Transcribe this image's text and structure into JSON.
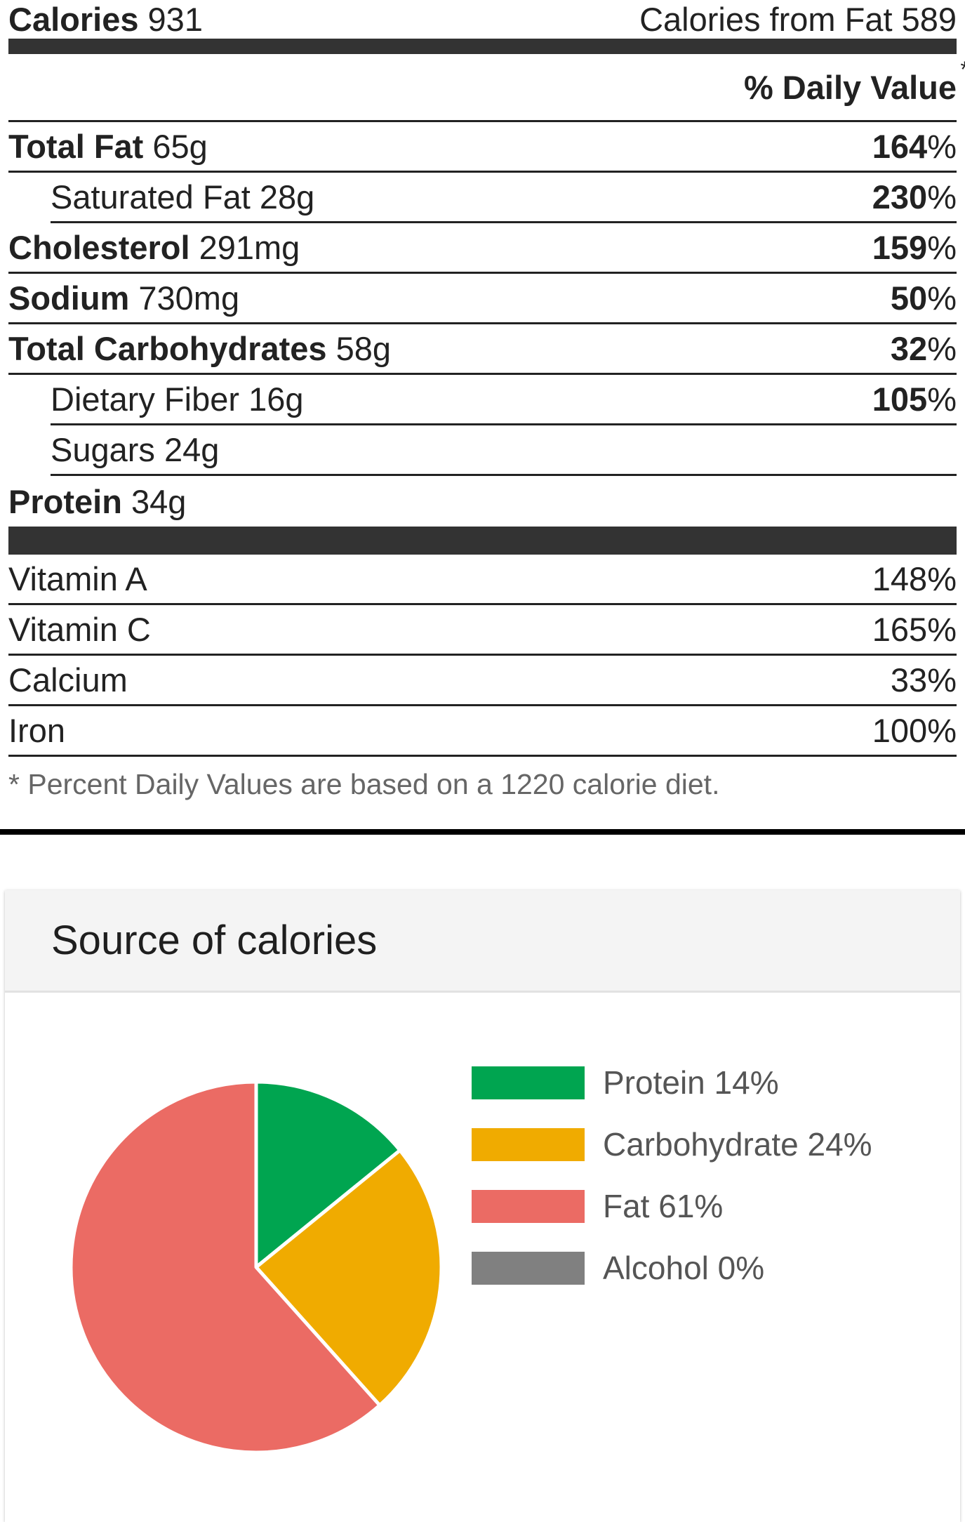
{
  "header": {
    "calories_label": "Calories",
    "calories_value": "931",
    "calories_from_fat_label": "Calories from Fat",
    "calories_from_fat_value": "589"
  },
  "daily_value_header": "% Daily Value",
  "daily_value_star": "*",
  "nutrients": [
    {
      "name": "Total Fat",
      "amount": "65g",
      "pct_num": "164",
      "pct_sym": "%",
      "indent": false
    },
    {
      "name": "Saturated Fat",
      "amount": "28g",
      "pct_num": "230",
      "pct_sym": "%",
      "indent": true
    },
    {
      "name": "Cholesterol",
      "amount": "291mg",
      "pct_num": "159",
      "pct_sym": "%",
      "indent": false
    },
    {
      "name": "Sodium",
      "amount": "730mg",
      "pct_num": "50",
      "pct_sym": "%",
      "indent": false
    },
    {
      "name": "Total Carbohydrates",
      "amount": "58g",
      "pct_num": "32",
      "pct_sym": "%",
      "indent": false
    },
    {
      "name": "Dietary Fiber",
      "amount": "16g",
      "pct_num": "105",
      "pct_sym": "%",
      "indent": true
    },
    {
      "name": "Sugars",
      "amount": "24g",
      "pct_num": "",
      "pct_sym": "",
      "indent": true
    },
    {
      "name": "Protein",
      "amount": "34g",
      "pct_num": "",
      "pct_sym": "",
      "indent": false
    }
  ],
  "vitamins": [
    {
      "name": "Vitamin A",
      "pct": "148%"
    },
    {
      "name": "Vitamin C",
      "pct": "165%"
    },
    {
      "name": "Calcium",
      "pct": "33%"
    },
    {
      "name": "Iron",
      "pct": "100%"
    }
  ],
  "footnote": "* Percent Daily Values are based on a 1220 calorie diet.",
  "card": {
    "title": "Source of calories"
  },
  "chart_data": {
    "type": "pie",
    "title": "Source of calories",
    "slices": [
      {
        "label": "Protein 14%",
        "value": 14,
        "color": "#00a550"
      },
      {
        "label": "Carbohydrate 24%",
        "value": 24,
        "color": "#f0ab00"
      },
      {
        "label": "Fat 61%",
        "value": 61,
        "color": "#eb6b64"
      },
      {
        "label": "Alcohol 0%",
        "value": 0,
        "color": "#808080"
      }
    ],
    "legend_position": "right"
  }
}
